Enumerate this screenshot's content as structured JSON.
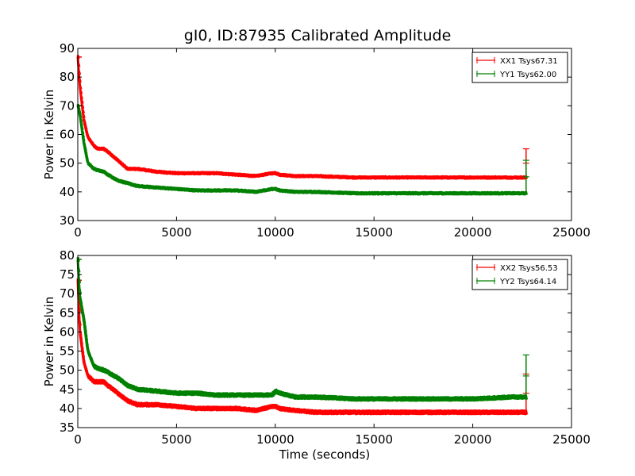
{
  "figure": {
    "title": "gI0, ID:87935 Calibrated Amplitude"
  },
  "chart_data": [
    {
      "type": "line",
      "title": "gI0, ID:87935 Calibrated Amplitude",
      "xlabel": "",
      "ylabel": "Power in Kelvin",
      "xlim": [
        0,
        25000
      ],
      "ylim": [
        30,
        90
      ],
      "xticks": [
        "0",
        "5000",
        "10000",
        "15000",
        "20000",
        "25000"
      ],
      "yticks": [
        "30",
        "40",
        "50",
        "60",
        "70",
        "80",
        "90"
      ],
      "legend_position": "top-right",
      "grid": false,
      "series": [
        {
          "name": "XX1 Tsys67.31",
          "color": "#ff0000",
          "x": [
            0,
            100,
            300,
            500,
            800,
            1000,
            1300,
            1500,
            2000,
            2500,
            3000,
            4000,
            5000,
            6000,
            7000,
            8000,
            9000,
            9800,
            10000,
            10200,
            11000,
            12000,
            14000,
            16000,
            18000,
            20000,
            22000,
            22700
          ],
          "y": [
            87,
            77,
            65,
            59,
            56,
            55,
            55,
            54,
            51,
            48,
            48,
            47,
            46.5,
            46.5,
            46.5,
            46,
            45.5,
            46.5,
            46.5,
            46,
            45.5,
            45.5,
            45,
            45,
            45,
            45,
            45,
            45
          ],
          "spike": {
            "x": 22700,
            "y_max": 55
          }
        },
        {
          "name": "YY1 Tsys62.00",
          "color": "#008000",
          "x": [
            0,
            100,
            300,
            500,
            800,
            1000,
            1300,
            1500,
            2000,
            2500,
            3000,
            4000,
            5000,
            6000,
            7000,
            8000,
            9000,
            9800,
            10000,
            10200,
            11000,
            12000,
            14000,
            16000,
            18000,
            20000,
            22000,
            22700
          ],
          "y": [
            70,
            67,
            57,
            50,
            48,
            47.5,
            47,
            46,
            44,
            43,
            42,
            41.5,
            41,
            40.5,
            40.5,
            40.5,
            40,
            41,
            41,
            40.5,
            40,
            40,
            39.5,
            39.5,
            39.5,
            39.5,
            39.5,
            39.5
          ],
          "spike": {
            "x": 22700,
            "y_max": 51
          }
        }
      ]
    },
    {
      "type": "line",
      "title": "",
      "xlabel": "Time (seconds)",
      "ylabel": "Power in Kelvin",
      "xlim": [
        0,
        25000
      ],
      "ylim": [
        35,
        80
      ],
      "xticks": [
        "0",
        "5000",
        "10000",
        "15000",
        "20000",
        "25000"
      ],
      "yticks": [
        "35",
        "40",
        "45",
        "50",
        "55",
        "60",
        "65",
        "70",
        "75",
        "80"
      ],
      "legend_position": "top-right",
      "grid": false,
      "series": [
        {
          "name": "XX2 Tsys56.53",
          "color": "#ff0000",
          "x": [
            0,
            100,
            300,
            500,
            800,
            1000,
            1300,
            1500,
            2000,
            2500,
            3000,
            4000,
            5000,
            6000,
            7000,
            8000,
            9000,
            9800,
            10000,
            10200,
            11000,
            12000,
            14000,
            16000,
            18000,
            20000,
            22000,
            22700
          ],
          "y": [
            73.5,
            60,
            52,
            48.5,
            47,
            47,
            47,
            46,
            44,
            42,
            41,
            41,
            40.5,
            40,
            40,
            40,
            39.5,
            40.5,
            40.5,
            40,
            39.5,
            39,
            39,
            39,
            39,
            39,
            39,
            39
          ],
          "spike": {
            "x": 22700,
            "y_max": 49
          }
        },
        {
          "name": "YY2 Tsys64.14",
          "color": "#008000",
          "x": [
            0,
            100,
            300,
            500,
            800,
            1000,
            1300,
            1500,
            2000,
            2500,
            3000,
            4000,
            5000,
            6000,
            7000,
            8000,
            9000,
            9800,
            10000,
            10200,
            11000,
            12000,
            14000,
            16000,
            18000,
            20000,
            22000,
            22700
          ],
          "y": [
            79,
            69,
            63,
            55,
            51,
            50.5,
            50,
            49.5,
            48,
            46,
            45,
            44.5,
            44,
            44,
            43.5,
            43.5,
            43.5,
            43.5,
            44.5,
            44,
            43,
            43,
            42.5,
            42.5,
            42.5,
            42.5,
            43,
            43
          ],
          "spike": {
            "x": 22700,
            "y_max": 54
          }
        }
      ]
    }
  ]
}
